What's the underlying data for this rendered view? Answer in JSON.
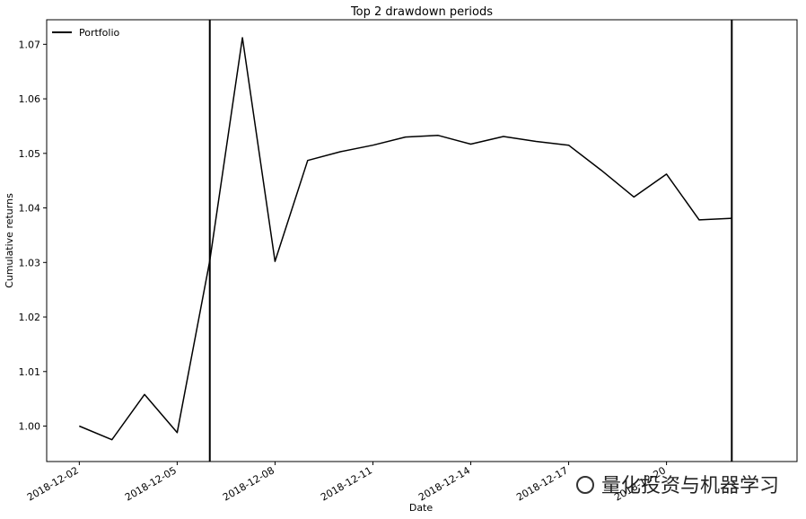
{
  "chart_data": {
    "type": "line",
    "title": "Top 2 drawdown periods",
    "xlabel": "Date",
    "ylabel": "Cumulative returns",
    "legend": {
      "entries": [
        "Portfolio"
      ],
      "placement": "top-left"
    },
    "grid": false,
    "ylim": [
      0.9935,
      1.0745
    ],
    "xlim": [
      "2018-12-01",
      "2018-12-24"
    ],
    "x_ticks": [
      "2018-12-02",
      "2018-12-05",
      "2018-12-08",
      "2018-12-11",
      "2018-12-14",
      "2018-12-17",
      "2018-12-20"
    ],
    "y_ticks": [
      1.0,
      1.01,
      1.02,
      1.03,
      1.04,
      1.05,
      1.06,
      1.07
    ],
    "y_tick_labels": [
      "1.00",
      "1.01",
      "1.02",
      "1.03",
      "1.04",
      "1.05",
      "1.06",
      "1.07"
    ],
    "series": [
      {
        "name": "Portfolio",
        "color": "#000000",
        "x": [
          "2018-12-02",
          "2018-12-03",
          "2018-12-04",
          "2018-12-05",
          "2018-12-06",
          "2018-12-07",
          "2018-12-08",
          "2018-12-09",
          "2018-12-10",
          "2018-12-11",
          "2018-12-12",
          "2018-12-13",
          "2018-12-14",
          "2018-12-15",
          "2018-12-16",
          "2018-12-17",
          "2018-12-18",
          "2018-12-19",
          "2018-12-20",
          "2018-12-21",
          "2018-12-22"
        ],
        "y": [
          1.0,
          0.9975,
          1.0058,
          0.9988,
          1.0303,
          1.0712,
          1.0302,
          1.0487,
          1.0503,
          1.0515,
          1.053,
          1.0533,
          1.0517,
          1.0531,
          1.0522,
          1.0515,
          1.0469,
          1.042,
          1.0462,
          1.0378,
          1.0381
        ]
      }
    ],
    "drawdown_markers": [
      "2018-12-06",
      "2018-12-22"
    ]
  },
  "watermark": {
    "text": "量化投资与机器学习"
  }
}
